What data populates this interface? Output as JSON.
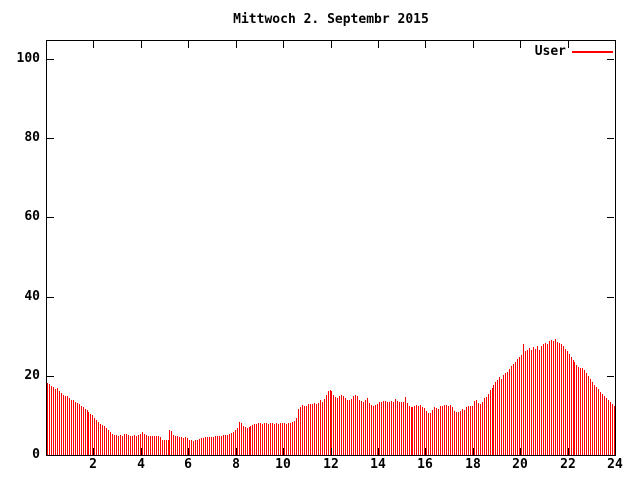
{
  "chart_data": {
    "type": "bar",
    "title": "Mittwoch 2. Septembr 2015",
    "xlabel": "",
    "ylabel": "",
    "x_start_hours": 0,
    "x_end_hours": 24,
    "x_ticks": [
      2,
      4,
      6,
      8,
      10,
      12,
      14,
      16,
      18,
      20,
      22,
      24
    ],
    "y_ticks": [
      0,
      20,
      40,
      60,
      80,
      100
    ],
    "ylim": [
      0,
      104.8
    ],
    "grid": "off",
    "legend_position": "top-right-inside",
    "background_color": "#ffffff",
    "axis_color": "#000000",
    "sample_interval_hours": 0.0833,
    "series": [
      {
        "name": "User",
        "color": "#ff0000",
        "style": "impulses",
        "values": [
          18.3,
          17.9,
          17.5,
          17.1,
          16.7,
          16.9,
          16.2,
          15.7,
          15.2,
          14.8,
          15.0,
          14.4,
          14.0,
          13.8,
          13.5,
          13.1,
          12.8,
          12.4,
          12.0,
          11.7,
          11.3,
          10.9,
          10.4,
          10.0,
          9.4,
          8.8,
          8.3,
          7.9,
          7.6,
          7.3,
          6.8,
          6.3,
          5.8,
          5.3,
          5.1,
          5.0,
          4.9,
          5.1,
          4.8,
          5.2,
          5.3,
          5.0,
          4.8,
          4.9,
          5.1,
          4.9,
          5.0,
          5.2,
          5.8,
          5.4,
          5.1,
          4.9,
          4.8,
          4.9,
          4.7,
          4.8,
          4.7,
          4.6,
          3.9,
          3.8,
          3.8,
          3.9,
          6.2,
          6.0,
          5.1,
          4.8,
          4.7,
          4.6,
          4.5,
          4.4,
          4.5,
          4.3,
          3.9,
          3.7,
          3.6,
          3.7,
          3.8,
          4.0,
          4.2,
          4.4,
          4.5,
          4.6,
          4.5,
          4.6,
          4.6,
          4.7,
          4.8,
          4.7,
          4.9,
          5.0,
          5.1,
          5.0,
          5.2,
          5.5,
          5.9,
          6.3,
          6.8,
          8.4,
          8.1,
          7.2,
          7.0,
          6.9,
          7.1,
          7.3,
          7.5,
          7.8,
          7.9,
          8.0,
          8.1,
          7.9,
          8.0,
          8.2,
          7.9,
          8.0,
          8.1,
          7.8,
          8.0,
          7.9,
          8.1,
          8.0,
          8.0,
          7.9,
          8.1,
          8.0,
          8.3,
          8.7,
          9.3,
          11.6,
          12.1,
          12.6,
          12.4,
          12.5,
          13.0,
          12.8,
          12.9,
          13.2,
          12.9,
          13.1,
          13.9,
          13.4,
          14.1,
          15.2,
          16.1,
          16.4,
          16.2,
          15.1,
          14.6,
          14.3,
          14.8,
          15.2,
          14.8,
          14.4,
          14.0,
          13.9,
          14.1,
          14.9,
          15.2,
          14.9,
          14.0,
          13.7,
          13.5,
          13.8,
          14.5,
          13.1,
          12.7,
          12.5,
          12.6,
          13.0,
          13.5,
          13.4,
          13.6,
          13.7,
          13.5,
          13.4,
          13.6,
          13.5,
          14.2,
          13.7,
          13.4,
          13.3,
          13.4,
          14.6,
          13.2,
          12.3,
          12.1,
          12.2,
          12.4,
          12.7,
          12.5,
          12.6,
          12.2,
          11.8,
          11.0,
          10.7,
          10.5,
          11.3,
          12.0,
          11.9,
          11.5,
          12.4,
          12.5,
          12.7,
          12.6,
          12.5,
          12.6,
          12.2,
          11.2,
          10.9,
          10.8,
          11.0,
          11.7,
          11.4,
          12.0,
          12.4,
          12.5,
          12.3,
          13.7,
          14.0,
          13.1,
          12.9,
          13.3,
          14.4,
          14.7,
          15.5,
          16.3,
          17.0,
          17.8,
          18.4,
          19.0,
          19.6,
          19.3,
          20.1,
          20.6,
          21.0,
          21.6,
          22.4,
          23.0,
          23.6,
          24.2,
          24.7,
          25.2,
          28.0,
          26.2,
          26.6,
          27.0,
          26.4,
          27.2,
          26.8,
          27.4,
          26.5,
          27.6,
          28.1,
          28.4,
          28.0,
          28.8,
          29.1,
          28.9,
          29.2,
          28.6,
          28.3,
          28.0,
          27.5,
          26.8,
          26.2,
          25.4,
          24.8,
          24.1,
          23.4,
          22.8,
          22.3,
          21.9,
          22.0,
          21.4,
          20.7,
          20.0,
          19.3,
          18.5,
          17.8,
          17.2,
          16.6,
          16.0,
          15.5,
          15.0,
          14.5,
          14.0,
          13.5,
          13.0,
          12.3
        ]
      }
    ]
  }
}
